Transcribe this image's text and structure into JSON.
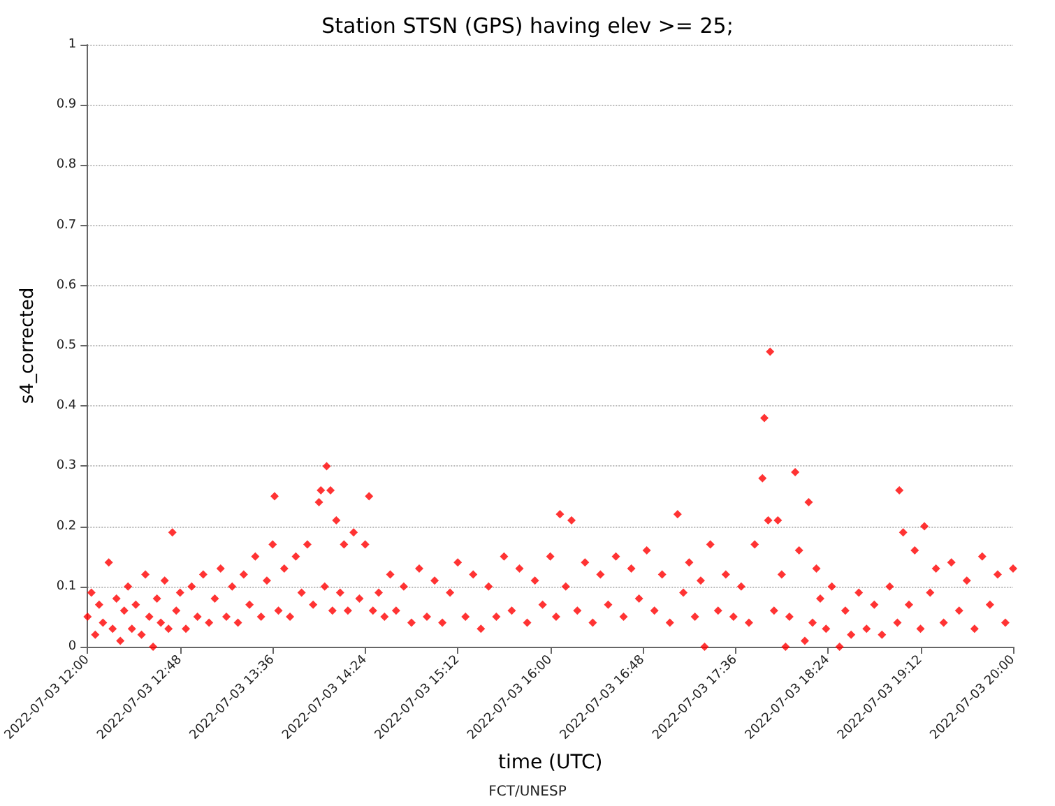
{
  "chart_data": {
    "type": "scatter",
    "title": "Station STSN (GPS) having elev >= 25;",
    "xlabel": "time (UTC)",
    "ylabel": "s4_corrected",
    "annotations": [
      "FCT/UNESP"
    ],
    "xlim": [
      "2022-07-03T12:00",
      "2022-07-03T20:00"
    ],
    "xticks": [
      {
        "value": "2022-07-03T12:00",
        "label": "2022-07-03 12:00"
      },
      {
        "value": "2022-07-03T12:48",
        "label": "2022-07-03 12:48"
      },
      {
        "value": "2022-07-03T13:36",
        "label": "2022-07-03 13:36"
      },
      {
        "value": "2022-07-03T14:24",
        "label": "2022-07-03 14:24"
      },
      {
        "value": "2022-07-03T15:12",
        "label": "2022-07-03 15:12"
      },
      {
        "value": "2022-07-03T16:00",
        "label": "2022-07-03 16:00"
      },
      {
        "value": "2022-07-03T16:48",
        "label": "2022-07-03 16:48"
      },
      {
        "value": "2022-07-03T17:36",
        "label": "2022-07-03 17:36"
      },
      {
        "value": "2022-07-03T18:24",
        "label": "2022-07-03 18:24"
      },
      {
        "value": "2022-07-03T19:12",
        "label": "2022-07-03 19:12"
      },
      {
        "value": "2022-07-03T20:00",
        "label": "2022-07-03 20:00"
      }
    ],
    "ylim": [
      0,
      1
    ],
    "yticks": [
      0,
      0.1,
      0.2,
      0.3,
      0.4,
      0.5,
      0.6,
      0.7,
      0.8,
      0.9,
      1
    ],
    "grid": "y",
    "marker": "diamond",
    "series": [
      {
        "color": "#ff0000",
        "x": [
          "2022-07-03T12:00",
          "2022-07-03T12:02",
          "2022-07-03T12:04",
          "2022-07-03T12:06",
          "2022-07-03T12:08",
          "2022-07-03T12:11",
          "2022-07-03T12:13",
          "2022-07-03T12:15",
          "2022-07-03T12:17",
          "2022-07-03T12:19",
          "2022-07-03T12:21",
          "2022-07-03T12:23",
          "2022-07-03T12:25",
          "2022-07-03T12:28",
          "2022-07-03T12:30",
          "2022-07-03T12:32",
          "2022-07-03T12:34",
          "2022-07-03T12:36",
          "2022-07-03T12:38",
          "2022-07-03T12:40",
          "2022-07-03T12:42",
          "2022-07-03T12:44",
          "2022-07-03T12:46",
          "2022-07-03T12:48",
          "2022-07-03T12:51",
          "2022-07-03T12:54",
          "2022-07-03T12:57",
          "2022-07-03T13:00",
          "2022-07-03T13:03",
          "2022-07-03T13:06",
          "2022-07-03T13:09",
          "2022-07-03T13:12",
          "2022-07-03T13:15",
          "2022-07-03T13:18",
          "2022-07-03T13:21",
          "2022-07-03T13:24",
          "2022-07-03T13:27",
          "2022-07-03T13:30",
          "2022-07-03T13:33",
          "2022-07-03T13:36",
          "2022-07-03T13:37",
          "2022-07-03T13:39",
          "2022-07-03T13:42",
          "2022-07-03T13:45",
          "2022-07-03T13:48",
          "2022-07-03T13:51",
          "2022-07-03T13:54",
          "2022-07-03T13:57",
          "2022-07-03T14:00",
          "2022-07-03T14:01",
          "2022-07-03T14:03",
          "2022-07-03T14:04",
          "2022-07-03T14:06",
          "2022-07-03T14:07",
          "2022-07-03T14:09",
          "2022-07-03T14:11",
          "2022-07-03T14:13",
          "2022-07-03T14:15",
          "2022-07-03T14:18",
          "2022-07-03T14:21",
          "2022-07-03T14:24",
          "2022-07-03T14:26",
          "2022-07-03T14:28",
          "2022-07-03T14:31",
          "2022-07-03T14:34",
          "2022-07-03T14:37",
          "2022-07-03T14:40",
          "2022-07-03T14:44",
          "2022-07-03T14:48",
          "2022-07-03T14:52",
          "2022-07-03T14:56",
          "2022-07-03T15:00",
          "2022-07-03T15:04",
          "2022-07-03T15:08",
          "2022-07-03T15:12",
          "2022-07-03T15:16",
          "2022-07-03T15:20",
          "2022-07-03T15:24",
          "2022-07-03T15:28",
          "2022-07-03T15:32",
          "2022-07-03T15:36",
          "2022-07-03T15:40",
          "2022-07-03T15:44",
          "2022-07-03T15:48",
          "2022-07-03T15:52",
          "2022-07-03T15:56",
          "2022-07-03T16:00",
          "2022-07-03T16:03",
          "2022-07-03T16:05",
          "2022-07-03T16:08",
          "2022-07-03T16:11",
          "2022-07-03T16:14",
          "2022-07-03T16:18",
          "2022-07-03T16:22",
          "2022-07-03T16:26",
          "2022-07-03T16:30",
          "2022-07-03T16:34",
          "2022-07-03T16:38",
          "2022-07-03T16:42",
          "2022-07-03T16:46",
          "2022-07-03T16:50",
          "2022-07-03T16:54",
          "2022-07-03T16:58",
          "2022-07-03T17:02",
          "2022-07-03T17:06",
          "2022-07-03T17:09",
          "2022-07-03T17:12",
          "2022-07-03T17:15",
          "2022-07-03T17:18",
          "2022-07-03T17:20",
          "2022-07-03T17:23",
          "2022-07-03T17:27",
          "2022-07-03T17:31",
          "2022-07-03T17:35",
          "2022-07-03T17:39",
          "2022-07-03T17:43",
          "2022-07-03T17:46",
          "2022-07-03T17:50",
          "2022-07-03T17:51",
          "2022-07-03T17:53",
          "2022-07-03T17:54",
          "2022-07-03T17:56",
          "2022-07-03T17:58",
          "2022-07-03T18:00",
          "2022-07-03T18:02",
          "2022-07-03T18:04",
          "2022-07-03T18:07",
          "2022-07-03T18:09",
          "2022-07-03T18:12",
          "2022-07-03T18:14",
          "2022-07-03T18:16",
          "2022-07-03T18:18",
          "2022-07-03T18:20",
          "2022-07-03T18:23",
          "2022-07-03T18:26",
          "2022-07-03T18:30",
          "2022-07-03T18:33",
          "2022-07-03T18:36",
          "2022-07-03T18:40",
          "2022-07-03T18:44",
          "2022-07-03T18:48",
          "2022-07-03T18:52",
          "2022-07-03T18:56",
          "2022-07-03T19:00",
          "2022-07-03T19:01",
          "2022-07-03T19:03",
          "2022-07-03T19:06",
          "2022-07-03T19:09",
          "2022-07-03T19:12",
          "2022-07-03T19:14",
          "2022-07-03T19:17",
          "2022-07-03T19:20",
          "2022-07-03T19:24",
          "2022-07-03T19:28",
          "2022-07-03T19:32",
          "2022-07-03T19:36",
          "2022-07-03T19:40",
          "2022-07-03T19:44",
          "2022-07-03T19:48",
          "2022-07-03T19:52",
          "2022-07-03T19:56",
          "2022-07-03T20:00"
        ],
        "values": [
          0.05,
          0.09,
          0.02,
          0.07,
          0.04,
          0.14,
          0.03,
          0.08,
          0.01,
          0.06,
          0.1,
          0.03,
          0.07,
          0.02,
          0.12,
          0.05,
          0,
          0.08,
          0.04,
          0.11,
          0.03,
          0.19,
          0.06,
          0.09,
          0.03,
          0.1,
          0.05,
          0.12,
          0.04,
          0.08,
          0.13,
          0.05,
          0.1,
          0.04,
          0.12,
          0.07,
          0.15,
          0.05,
          0.11,
          0.17,
          0.25,
          0.06,
          0.13,
          0.05,
          0.15,
          0.09,
          0.17,
          0.07,
          0.24,
          0.26,
          0.1,
          0.3,
          0.26,
          0.06,
          0.21,
          0.09,
          0.17,
          0.06,
          0.19,
          0.08,
          0.17,
          0.25,
          0.06,
          0.09,
          0.05,
          0.12,
          0.06,
          0.1,
          0.04,
          0.13,
          0.05,
          0.11,
          0.04,
          0.09,
          0.14,
          0.05,
          0.12,
          0.03,
          0.1,
          0.05,
          0.15,
          0.06,
          0.13,
          0.04,
          0.11,
          0.07,
          0.15,
          0.05,
          0.22,
          0.1,
          0.21,
          0.06,
          0.14,
          0.04,
          0.12,
          0.07,
          0.15,
          0.05,
          0.13,
          0.08,
          0.16,
          0.06,
          0.12,
          0.04,
          0.22,
          0.09,
          0.14,
          0.05,
          0.11,
          0,
          0.17,
          0.06,
          0.12,
          0.05,
          0.1,
          0.04,
          0.17,
          0.28,
          0.38,
          0.21,
          0.49,
          0.06,
          0.21,
          0.12,
          0,
          0.05,
          0.29,
          0.16,
          0.01,
          0.24,
          0.04,
          0.13,
          0.08,
          0.03,
          0.1,
          0,
          0.06,
          0.02,
          0.09,
          0.03,
          0.07,
          0.02,
          0.1,
          0.04,
          0.26,
          0.19,
          0.07,
          0.16,
          0.03,
          0.2,
          0.09,
          0.13,
          0.04,
          0.14,
          0.06,
          0.11,
          0.03,
          0.15,
          0.07,
          0.12,
          0.04,
          0.13
        ]
      }
    ]
  }
}
